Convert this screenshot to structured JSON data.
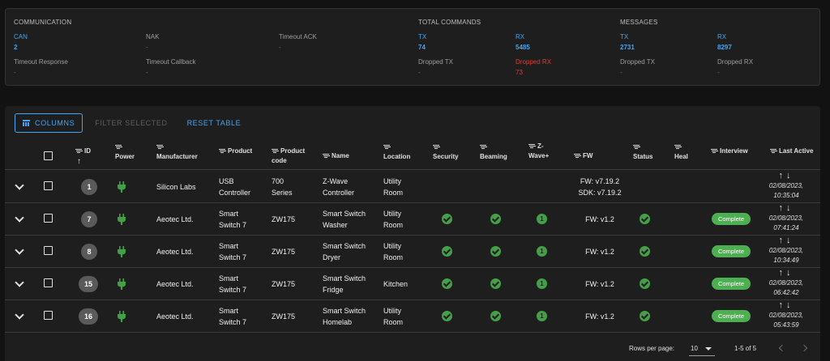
{
  "stats": {
    "communication": {
      "title": "COMMUNICATION",
      "items": [
        {
          "label": "CAN",
          "value": "2"
        },
        {
          "label": "NAK",
          "value": "-"
        },
        {
          "label": "Timeout ACK",
          "value": "-"
        },
        {
          "label": "Timeout Response",
          "value": "-"
        },
        {
          "label": "Timeout Callback",
          "value": "-"
        }
      ]
    },
    "total_commands": {
      "title": "TOTAL COMMANDS",
      "items": [
        {
          "label": "TX",
          "value": "74"
        },
        {
          "label": "RX",
          "value": "5485"
        },
        {
          "label": "Dropped TX",
          "value": "-"
        },
        {
          "label": "Dropped RX",
          "value": "73"
        }
      ]
    },
    "messages": {
      "title": "MESSAGES",
      "items": [
        {
          "label": "TX",
          "value": "2731"
        },
        {
          "label": "RX",
          "value": "8297"
        },
        {
          "label": "Dropped TX",
          "value": "-"
        },
        {
          "label": "Dropped RX",
          "value": "-"
        }
      ]
    }
  },
  "toolbar": {
    "columns_label": "COLUMNS",
    "filter_selected_label": "FILTER SELECTED",
    "reset_table_label": "RESET TABLE"
  },
  "table": {
    "headers": {
      "id": "ID",
      "power": "Power",
      "manufacturer": "Manufacturer",
      "product": "Product",
      "product_code_1": "Product",
      "product_code_2": "code",
      "name": "Name",
      "location": "Location",
      "security": "Security",
      "beaming": "Beaming",
      "zwave_1": "Z-",
      "zwave_2": "Wave+",
      "fw": "FW",
      "status": "Status",
      "heal": "Heal",
      "interview": "Interview",
      "last_active": "Last Active"
    },
    "rows": [
      {
        "id": "1",
        "manufacturer": "Silicon Labs",
        "product_1": "USB",
        "product_2": "Controller",
        "code_1": "700",
        "code_2": "Series",
        "name_1": "Z-Wave",
        "name_2": "Controller",
        "location_1": "Utility",
        "location_2": "Room",
        "zwave_plus": "",
        "fw_1": "FW: v7.19.2",
        "fw_2": "SDK: v7.19.2",
        "interview": "",
        "date": "02/08/2023,",
        "time": "10:35:04"
      },
      {
        "id": "7",
        "manufacturer": "Aeotec Ltd.",
        "product_1": "Smart",
        "product_2": "Switch 7",
        "code_1": "ZW175",
        "code_2": "",
        "name_1": "Smart Switch",
        "name_2": "Washer",
        "location_1": "Utility",
        "location_2": "Room",
        "zwave_plus": "1",
        "fw_1": "FW: v1.2",
        "fw_2": "",
        "interview": "Complete",
        "date": "02/08/2023,",
        "time": "07:41:24"
      },
      {
        "id": "8",
        "manufacturer": "Aeotec Ltd.",
        "product_1": "Smart",
        "product_2": "Switch 7",
        "code_1": "ZW175",
        "code_2": "",
        "name_1": "Smart Switch",
        "name_2": "Dryer",
        "location_1": "Utility",
        "location_2": "Room",
        "zwave_plus": "1",
        "fw_1": "FW: v1.2",
        "fw_2": "",
        "interview": "Complete",
        "date": "02/08/2023,",
        "time": "10:34:49"
      },
      {
        "id": "15",
        "manufacturer": "Aeotec Ltd.",
        "product_1": "Smart",
        "product_2": "Switch 7",
        "code_1": "ZW175",
        "code_2": "",
        "name_1": "Smart Switch",
        "name_2": "Fridge",
        "location_1": "Kitchen",
        "location_2": "",
        "zwave_plus": "1",
        "fw_1": "FW: v1.2",
        "fw_2": "",
        "interview": "Complete",
        "date": "02/08/2023,",
        "time": "06:42:42"
      },
      {
        "id": "16",
        "manufacturer": "Aeotec Ltd.",
        "product_1": "Smart",
        "product_2": "Switch 7",
        "code_1": "ZW175",
        "code_2": "",
        "name_1": "Smart Switch",
        "name_2": "Homelab",
        "location_1": "Utility",
        "location_2": "Room",
        "zwave_plus": "1",
        "fw_1": "FW: v1.2",
        "fw_2": "",
        "interview": "Complete",
        "date": "02/08/2023,",
        "time": "05:43:59"
      }
    ]
  },
  "pagination": {
    "rows_per_page_label": "Rows per page:",
    "rows_per_page_value": "10",
    "range": "1-5 of 5"
  },
  "colors": {
    "accent": "#42a5f5",
    "success": "#43a047",
    "error": "#e53935"
  }
}
